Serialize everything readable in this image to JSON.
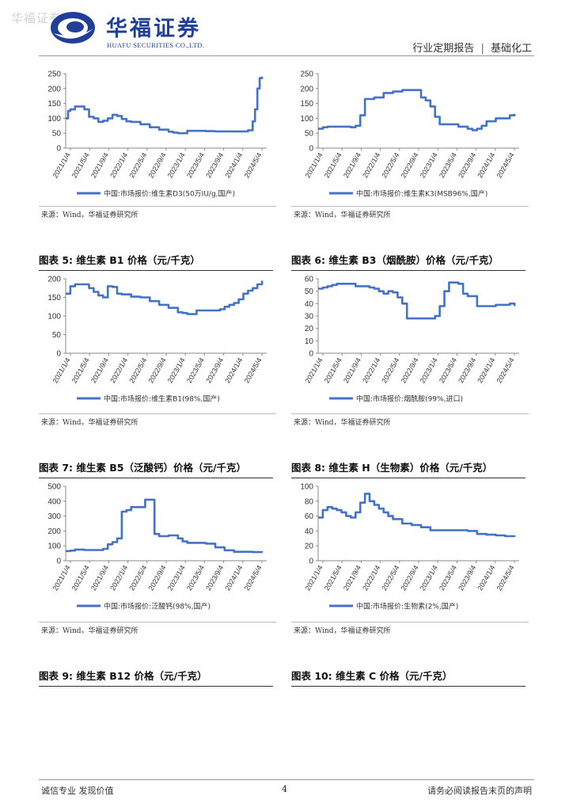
{
  "header": {
    "watermark": "华福证券",
    "brand_cn": "华福证券",
    "brand_en": "HUAFU SECURITIES CO.,LTD.",
    "report_type": "行业定期报告",
    "separator": "|",
    "sector": "基础化工"
  },
  "colors": {
    "line": "#4472c4",
    "brand": "#1f3f98"
  },
  "panels": [
    {
      "id": "d3",
      "source": "来源：Wind，华福证券研究所",
      "chart_data": {
        "type": "line",
        "ylim": [
          0,
          250
        ],
        "yticks": [
          0,
          50,
          100,
          150,
          200,
          250
        ],
        "xlim": [
          0,
          43
        ],
        "x_tick_labels": [
          "2021/1/4",
          "2021/5/4",
          "2021/9/4",
          "2022/1/4",
          "2022/5/4",
          "2022/9/4",
          "2023/1/4",
          "2023/5/4",
          "2023/9/4",
          "2024/1/4",
          "2024/5/4"
        ],
        "series": [
          {
            "name": "中国:市场报价:维生素D3(50万IU/g,国产)",
            "x": [
              0,
              0.5,
              1,
              2,
              3,
              4,
              5,
              6,
              7,
              8,
              9,
              10,
              11,
              12,
              13,
              14,
              16,
              18,
              20,
              22,
              23,
              24,
              26,
              28,
              30,
              32,
              34,
              36,
              38,
              39,
              40,
              40.5,
              41,
              41.5,
              42
            ],
            "values": [
              100,
              125,
              130,
              140,
              140,
              130,
              105,
              100,
              88,
              92,
              100,
              112,
              108,
              98,
              90,
              88,
              80,
              70,
              62,
              55,
              52,
              50,
              58,
              58,
              57,
              56,
              56,
              56,
              56,
              60,
              90,
              130,
              200,
              235,
              240
            ]
          }
        ]
      }
    },
    {
      "id": "k3",
      "source": "来源：Wind，华福证券研究所",
      "chart_data": {
        "type": "line",
        "ylim": [
          0,
          250
        ],
        "yticks": [
          0,
          50,
          100,
          150,
          200,
          250
        ],
        "xlim": [
          0,
          43
        ],
        "x_tick_labels": [
          "2021/1/4",
          "2021/5/4",
          "2021/9/4",
          "2022/1/4",
          "2022/5/4",
          "2022/9/4",
          "2023/1/4",
          "2023/5/4",
          "2023/9/4",
          "2024/1/4",
          "2024/5/4"
        ],
        "series": [
          {
            "name": "中国:市场报价:维生素K3(MSB96%,国产)",
            "x": [
              0,
              1,
              2,
              4,
              6,
              7,
              8,
              9,
              10,
              12,
              14,
              16,
              18,
              20,
              21,
              22,
              23,
              24,
              25,
              26,
              28,
              30,
              31,
              32,
              33,
              34,
              35,
              36,
              38,
              40,
              41,
              42
            ],
            "values": [
              65,
              70,
              72,
              72,
              72,
              70,
              75,
              110,
              165,
              170,
              185,
              190,
              195,
              195,
              195,
              170,
              160,
              140,
              105,
              80,
              80,
              72,
              72,
              65,
              60,
              65,
              75,
              90,
              100,
              100,
              110,
              115
            ]
          }
        ]
      }
    },
    {
      "id": "b1",
      "title": "图表 5:  维生素 B1 价格（元/千克）",
      "source": "来源：Wind，华福证券研究所",
      "chart_data": {
        "type": "line",
        "ylim": [
          0,
          200
        ],
        "yticks": [
          0,
          50,
          100,
          150,
          200
        ],
        "xlim": [
          0,
          43
        ],
        "x_tick_labels": [
          "2021/1/4",
          "2021/5/4",
          "2021/9/4",
          "2022/1/4",
          "2022/5/4",
          "2022/9/4",
          "2023/1/4",
          "2023/5/4",
          "2023/9/4",
          "2024/1/4",
          "2024/5/4"
        ],
        "series": [
          {
            "name": "中国:市场报价:维生素B1(98%,国产)",
            "x": [
              0,
              1,
              2,
              4,
              5,
              6,
              7,
              8,
              9,
              10,
              11,
              12,
              14,
              16,
              18,
              20,
              22,
              24,
              25,
              26,
              28,
              30,
              32,
              33,
              34,
              35,
              36,
              37,
              38,
              39,
              40,
              41,
              42
            ],
            "values": [
              160,
              180,
              185,
              185,
              175,
              165,
              155,
              150,
              180,
              178,
              160,
              158,
              152,
              150,
              140,
              130,
              122,
              110,
              108,
              105,
              115,
              115,
              115,
              118,
              125,
              130,
              135,
              145,
              160,
              168,
              175,
              185,
              195
            ]
          }
        ]
      }
    },
    {
      "id": "b3",
      "title": "图表 6:  维生素 B3（烟酰胺）价格（元/千克）",
      "source": "来源：Wind，华福证券研究所",
      "chart_data": {
        "type": "line",
        "ylim": [
          0,
          60
        ],
        "yticks": [
          0,
          10,
          20,
          30,
          40,
          50,
          60
        ],
        "xlim": [
          0,
          43
        ],
        "x_tick_labels": [
          "2021/1/4",
          "2021/5/4",
          "2021/9/4",
          "2022/1/4",
          "2022/5/4",
          "2022/9/4",
          "2023/1/4",
          "2023/5/4",
          "2023/9/4",
          "2024/1/4",
          "2024/5/4"
        ],
        "series": [
          {
            "name": "中国:市场报价:烟酰胺(99%,进口)",
            "x": [
              0,
              1,
              2,
              3,
              4,
              6,
              8,
              10,
              11,
              12,
              13,
              14,
              15,
              16,
              17,
              18,
              19,
              20,
              22,
              24,
              25,
              26,
              27,
              28,
              29,
              30,
              31,
              32,
              34,
              36,
              38,
              40,
              41,
              42
            ],
            "values": [
              52,
              53,
              54,
              55,
              56,
              56,
              54,
              54,
              53,
              52,
              50,
              48,
              50,
              49,
              45,
              40,
              28,
              28,
              28,
              28,
              30,
              38,
              50,
              57,
              57,
              56,
              48,
              46,
              38,
              38,
              39,
              39,
              40,
              38
            ]
          }
        ]
      }
    },
    {
      "id": "b5",
      "title": "图表 7:  维生素 B5（泛酸钙）价格（元/千克）",
      "source": "来源：Wind，华福证券研究所",
      "chart_data": {
        "type": "line",
        "ylim": [
          0,
          500
        ],
        "yticks": [
          0,
          100,
          200,
          300,
          400,
          500
        ],
        "xlim": [
          0,
          43
        ],
        "x_tick_labels": [
          "2021/1/4",
          "2021/5/4",
          "2021/9/4",
          "2022/1/4",
          "2022/5/4",
          "2022/9/4",
          "2023/1/4",
          "2023/5/4",
          "2023/9/4",
          "2024/1/4",
          "2024/5/4"
        ],
        "series": [
          {
            "name": "中国:市场报价:泛酸钙(98%,国产)",
            "x": [
              0,
              1,
              2,
              4,
              6,
              8,
              9,
              10,
              11,
              12,
              13,
              14,
              16,
              17,
              18,
              19,
              20,
              22,
              24,
              25,
              26,
              28,
              30,
              32,
              34,
              36,
              38,
              40,
              42
            ],
            "values": [
              65,
              68,
              75,
              72,
              72,
              80,
              110,
              125,
              150,
              330,
              340,
              360,
              360,
              410,
              410,
              180,
              165,
              170,
              150,
              130,
              120,
              120,
              115,
              90,
              70,
              60,
              60,
              58,
              55
            ]
          }
        ]
      }
    },
    {
      "id": "h",
      "title": "图表 8:  维生素 H（生物素）价格（元/千克）",
      "source": "来源：Wind，华福证券研究所",
      "chart_data": {
        "type": "line",
        "ylim": [
          0,
          100
        ],
        "yticks": [
          0,
          20,
          40,
          60,
          80,
          100
        ],
        "xlim": [
          0,
          43
        ],
        "x_tick_labels": [
          "2021/1/4",
          "2021/5/4",
          "2021/9/4",
          "2022/1/4",
          "2022/5/4",
          "2022/9/4",
          "2023/1/4",
          "2023/5/4",
          "2023/9/4",
          "2024/1/4",
          "2024/5/4"
        ],
        "series": [
          {
            "name": "中国:市场报价:生物素(2%,国产)",
            "x": [
              0,
              1,
              2,
              3,
              4,
              5,
              6,
              7,
              8,
              9,
              10,
              11,
              12,
              13,
              14,
              15,
              16,
              18,
              20,
              22,
              24,
              26,
              28,
              30,
              32,
              34,
              36,
              38,
              40,
              42
            ],
            "values": [
              58,
              68,
              72,
              70,
              68,
              65,
              60,
              58,
              65,
              78,
              90,
              80,
              75,
              70,
              65,
              60,
              56,
              50,
              48,
              45,
              41,
              41,
              41,
              41,
              40,
              36,
              35,
              34,
              33,
              32
            ]
          }
        ]
      }
    }
  ],
  "bottom_titles": {
    "b12": "图表 9:  维生素 B12 价格（元/千克）",
    "c": "图表 10:  维生素 C 价格（元/千克）"
  },
  "footer": {
    "left": "诚信专业  发现价值",
    "page": "4",
    "right": "请务必阅读报告末页的声明"
  }
}
